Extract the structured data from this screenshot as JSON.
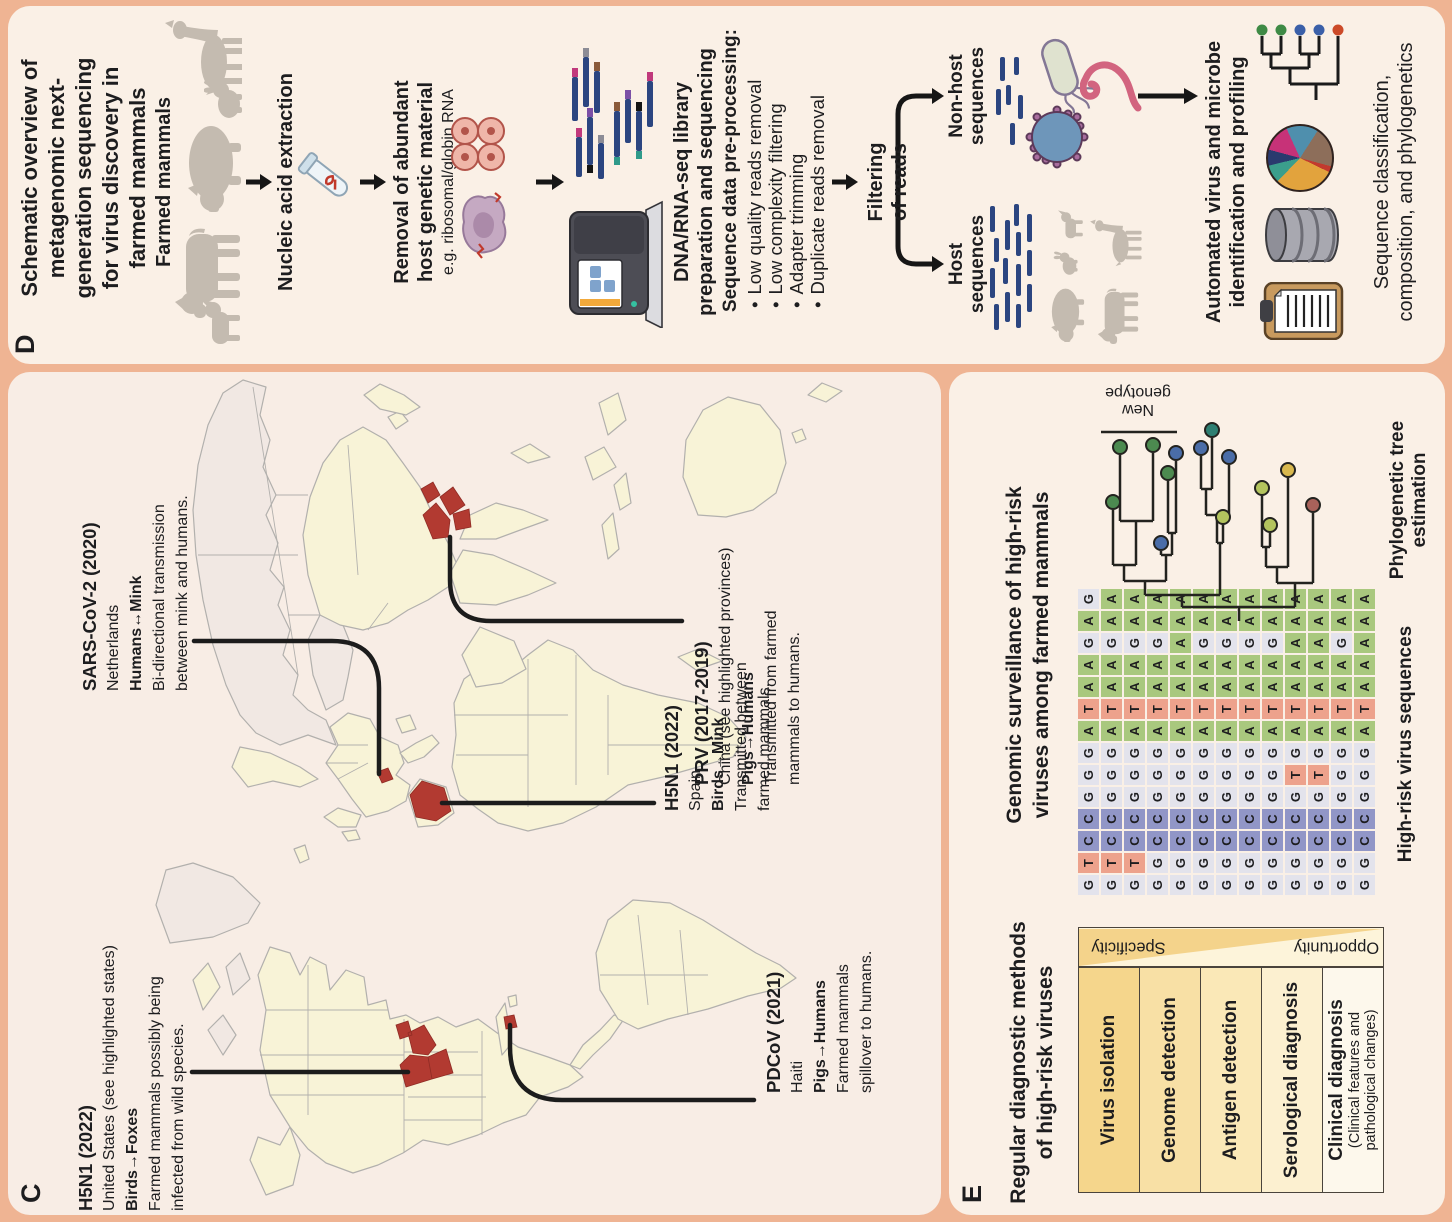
{
  "colors": {
    "frame": "#efb493",
    "panel": "#faf0e6",
    "ocean": "#f8ede5",
    "ink": "#1d1d1f",
    "land": "#f8f3d7",
    "land-alt": "#f1e8e3",
    "map-border": "#b2b0ad",
    "red": "#b23a31",
    "read": "#2b4580",
    "animal": "#c4bbb0",
    "nt-a": "#a9c87e",
    "nt-c": "#9196c7",
    "nt-g": "#e3e3ec",
    "nt-t": "#eda28c",
    "row-1": "#f5d68c",
    "row-2": "#f8e0a5",
    "row-3": "#fae8b7",
    "row-4": "#fcf0d0",
    "row-5": "#fdf8ec",
    "wedge-dark": "#f4d38b",
    "wedge-light": "#fdf4da"
  },
  "panel_c": {
    "label": "C",
    "annotations": [
      {
        "title": "H5N1 (2022)",
        "location": "United States (see highlighted states)",
        "route": "Birds→Foxes",
        "desc1": "Farmed mammals possibly being",
        "desc2": "infected from wild species."
      },
      {
        "title": "SARS-CoV-2 (2020)",
        "location": "Netherlands",
        "route": "Humans↔Mink",
        "desc1": "Bi-directional transmission",
        "desc2": "between mink and humans."
      },
      {
        "title": "H5N1 (2022)",
        "location": "Spain",
        "route": "Birds→Mink",
        "desc1": "Transmitted between",
        "desc2": "farmed mammals."
      },
      {
        "title": "PRV (2017-2019)",
        "location": "China (see highlighted provinces)",
        "route": "Pigs→Humans",
        "desc1": "Transmitted from farmed",
        "desc2": "mammals to humans."
      },
      {
        "title": "PDCoV (2021)",
        "location": "Haiti",
        "route": "Pigs→Humans",
        "desc1": "Farmed mammals",
        "desc2": "spillover to humans."
      }
    ]
  },
  "panel_d": {
    "label": "D",
    "title_l1": "Schematic overview of",
    "title_l2": "metagenomic next-",
    "title_l3": "generation sequencing",
    "title_l4": "for virus discovery in",
    "title_l5": "farmed mammals",
    "farmed": "Farmed mammals",
    "nucleic": "Nucleic acid extraction",
    "removal_l1": "Removal of abundant",
    "removal_l2": "host genetic material",
    "removal_sub": "e.g. ribosomal/globin RNA",
    "library_l1": "DNA/RNA-seq library",
    "library_l2": "preparation and sequencing",
    "preprocess": "Sequence data pre-processing:",
    "bullets": [
      "Low quality reads removal",
      "Low complexity filtering",
      "Adapter trimming",
      "Duplicate reads removal"
    ],
    "filtering_l1": "Filtering",
    "filtering_l2": "of reads",
    "nonhost_l1": "Non-host",
    "nonhost_l2": "sequences",
    "host_l1": "Host",
    "host_l2": "sequences",
    "automated_l1": "Automated virus and microbe",
    "automated_l2": "identification and profiling",
    "seqclass_l1": "Sequence classification,",
    "seqclass_l2": "composition, and phylogenetics",
    "tree_dots": [
      "#3e8a45",
      "#3e8a45",
      "#3a5fa8",
      "#3a5fa8",
      "#cc4a28"
    ]
  },
  "panel_e": {
    "label": "E",
    "left_title_l1": "Regular diagnostic methods",
    "left_title_l2": "of high-risk viruses",
    "specificity": "Specificity",
    "opportunity": "Opportunity",
    "table": {
      "rows": [
        {
          "label": "Virus isolation"
        },
        {
          "label": "Genome detection"
        },
        {
          "label": "Antigen detection"
        },
        {
          "label": "Serological diagnosis"
        },
        {
          "label": "Clinical diagnosis",
          "sub1": "(Clinical features and",
          "sub2": "pathological changes)"
        }
      ]
    },
    "right_title_l1": "Genomic surveillance of high-risk",
    "right_title_l2": "viruses among farmed mammals",
    "matrix": {
      "legend": {
        "A": "nt-a",
        "C": "nt-c",
        "G": "nt-g",
        "T": "nt-t"
      },
      "rows": [
        "GTCCGGGATAAGAG",
        "GTCCGGGATAAGAA",
        "GTCCGGGATAAGAA",
        "GGCCGGGATAAGAA",
        "GGCCGGGATAAAAA",
        "GGCCGGGATAAGAA",
        "GGCCGGGATAAGAA",
        "GGCCGGGATAAGAA",
        "GGCCGGGATAAGAA",
        "GGCCGTGATAAAAA",
        "GGCCGTGATAAAAA",
        "GGCCGGGATAAGAA",
        "GGCCGGGATAAAAA"
      ]
    },
    "matrix_caption": "High-risk virus sequences",
    "new_genotype_l1": "New",
    "new_genotype_l2": "genotype",
    "tree_caption_l1": "Phylogenetic tree",
    "tree_caption_l2": "estimation",
    "tip_colors": [
      "#4c8a50",
      "#4c8a50",
      "#4c8a50",
      "#4a6da8",
      "#4c8a50",
      "#4a6da8",
      "#4a6da8",
      "#2e7f72",
      "#b3c45e",
      "#4a6da8",
      "#b3c45e",
      "#b3c45e",
      "#d8b84e",
      "#a8625a"
    ]
  }
}
